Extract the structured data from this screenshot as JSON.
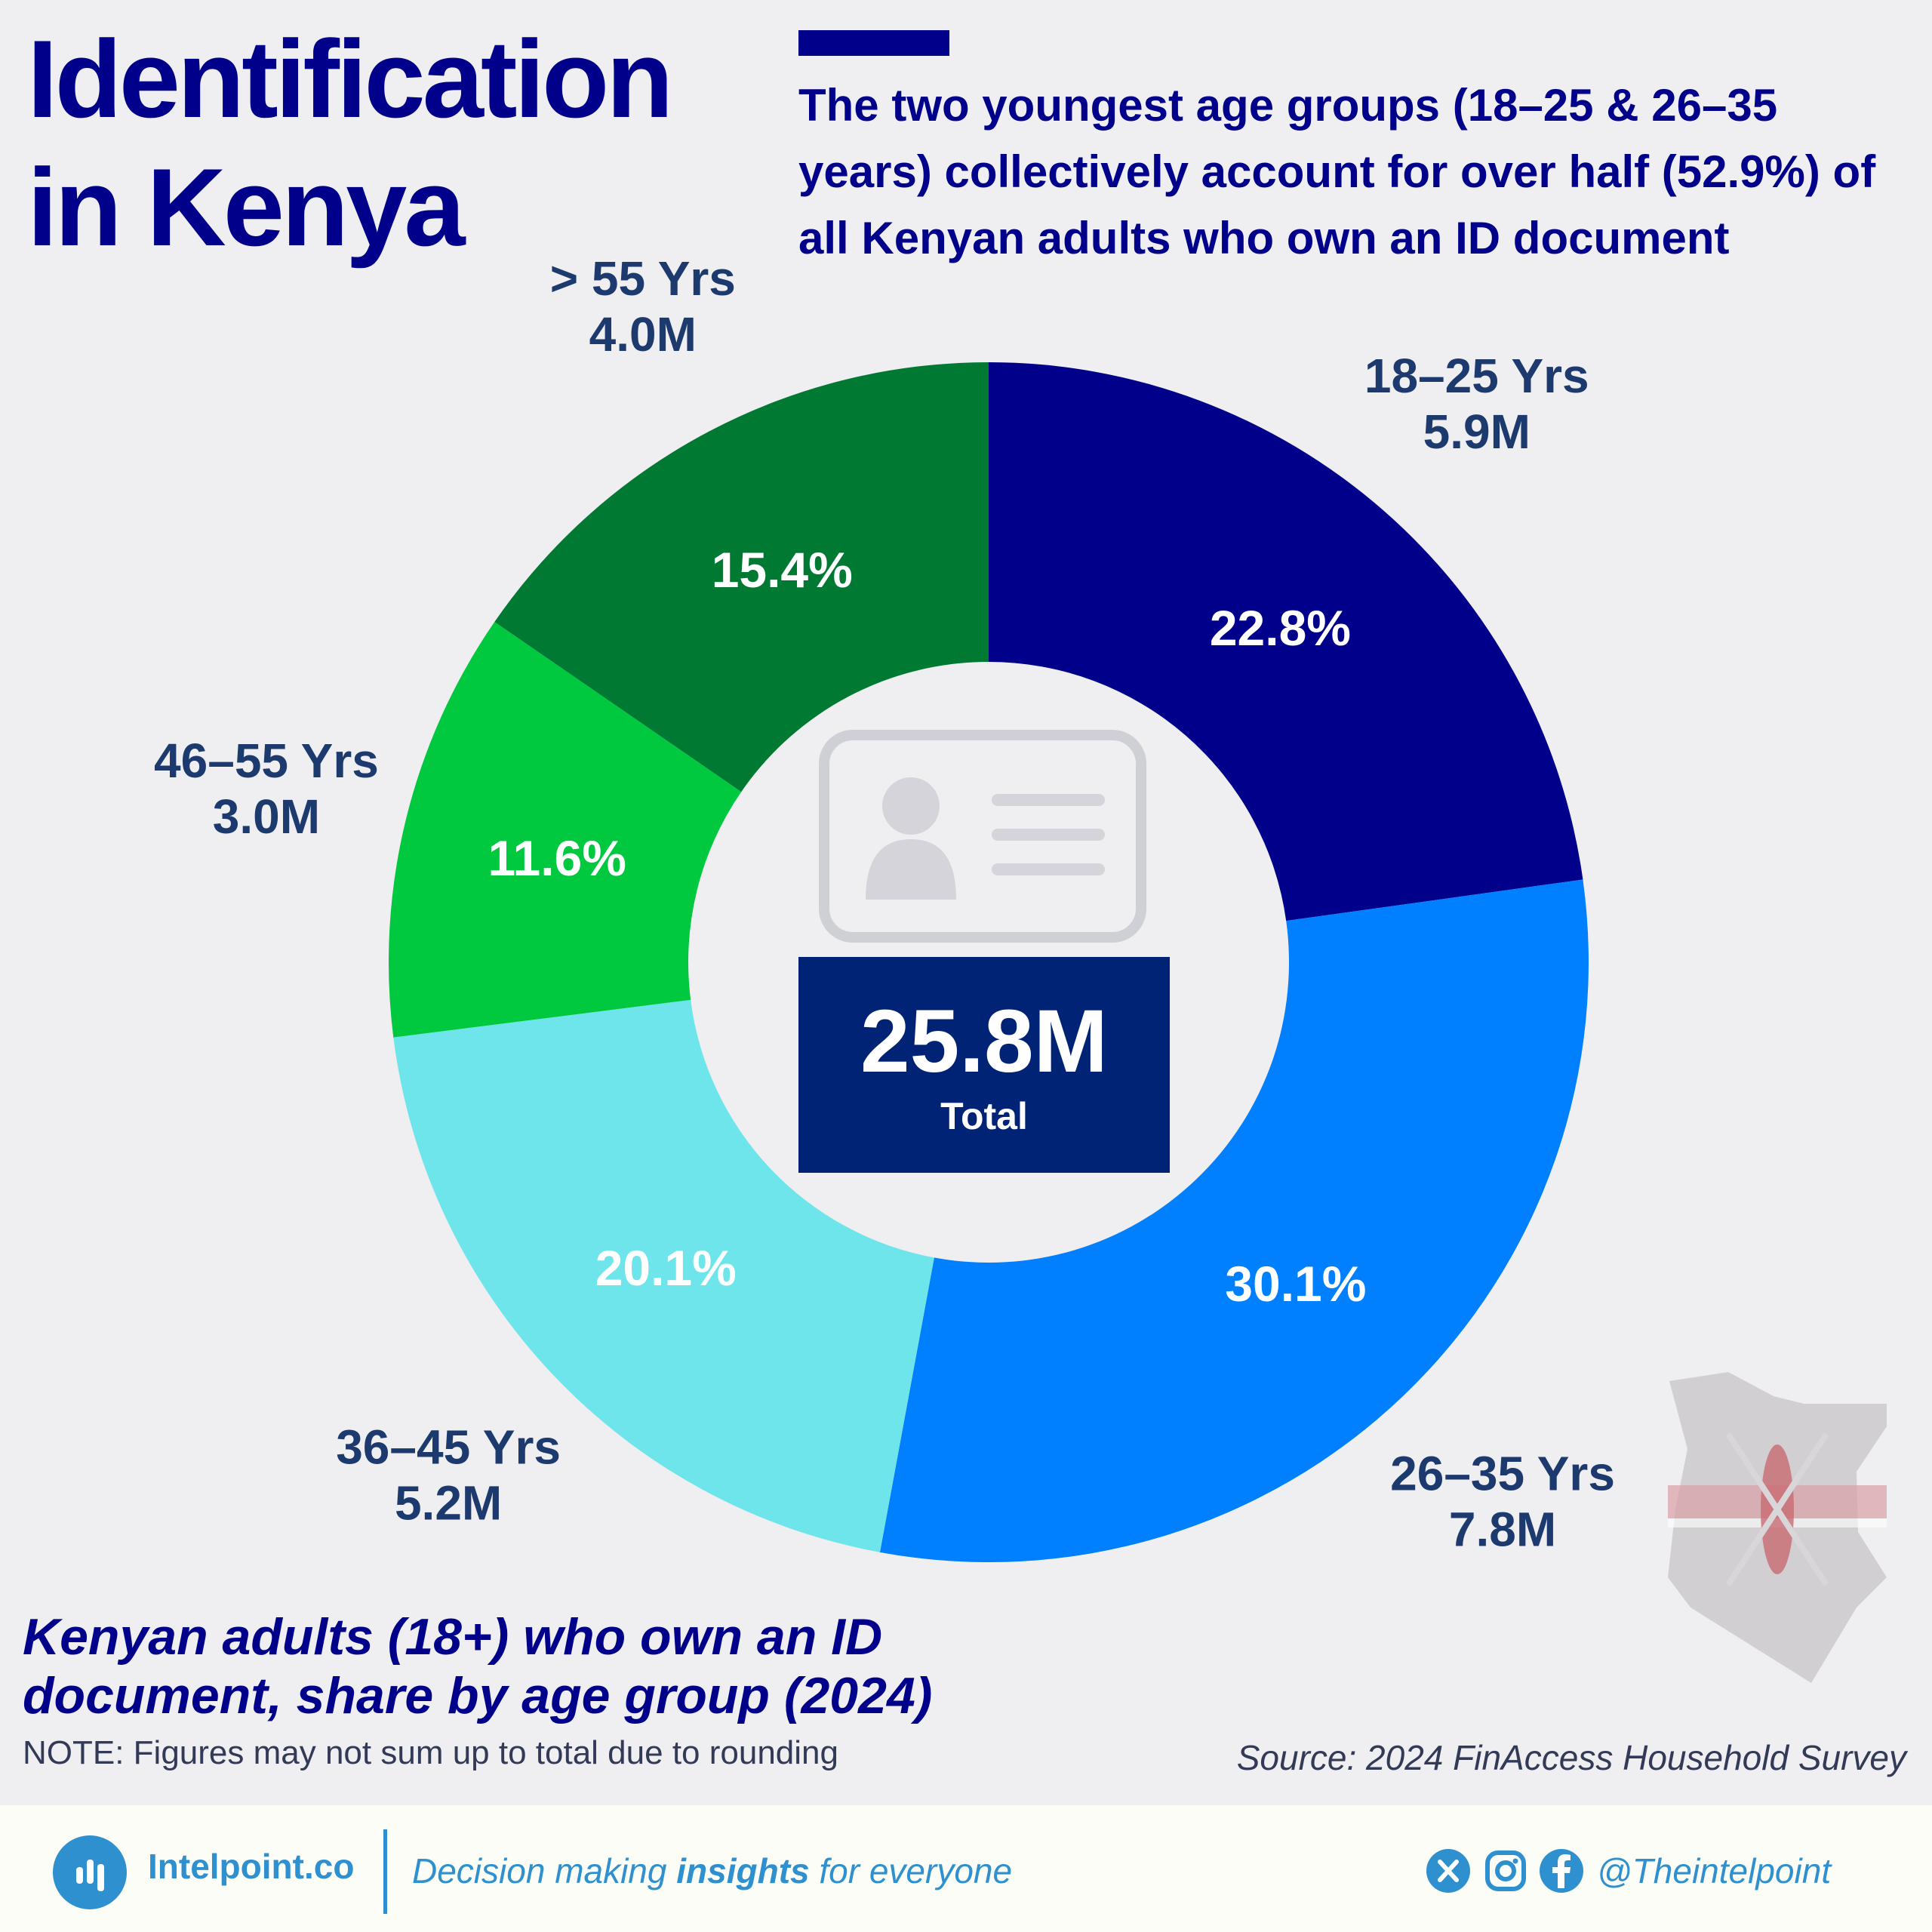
{
  "header": {
    "title_line1": "Identification",
    "title_line2": "in Kenya",
    "subtitle": "The two youngest age groups (18–25 & 26–35 years) collectively account for over half (52.9%) of all Kenyan adults who own an ID document",
    "accent_color": "#00008b"
  },
  "chart_data": {
    "type": "pie",
    "categories": [
      "18–25 Yrs",
      "26–35 Yrs",
      "36–45 Yrs",
      "46–55 Yrs",
      "> 55 Yrs"
    ],
    "values": [
      22.8,
      30.1,
      20.1,
      11.6,
      15.4
    ],
    "value_labels": [
      "22.8%",
      "30.1%",
      "20.1%",
      "11.6%",
      "15.4%"
    ],
    "counts": [
      "5.9M",
      "7.8M",
      "5.2M",
      "3.0M",
      "4.0M"
    ],
    "colors": [
      "#00008b",
      "#0080ff",
      "#6ee5ea",
      "#00c83f",
      "#007a33"
    ],
    "title": "Kenyan adults (18+) who own an ID document, share by age group (2024)",
    "total_value": "25.8M",
    "total_label": "Total",
    "legend": "none"
  },
  "notes": {
    "note": "NOTE: Figures may not sum up to total due to rounding",
    "source": "Source: 2024 FinAccess Household Survey"
  },
  "footer": {
    "brand": "Intelpoint.co",
    "tagline_pre": "Decision making ",
    "tagline_bold": "insights",
    "tagline_post": " for everyone",
    "handle": "@Theintelpoint",
    "icons": [
      "x-icon",
      "instagram-icon",
      "facebook-icon"
    ],
    "brand_color": "#2f90cf"
  }
}
